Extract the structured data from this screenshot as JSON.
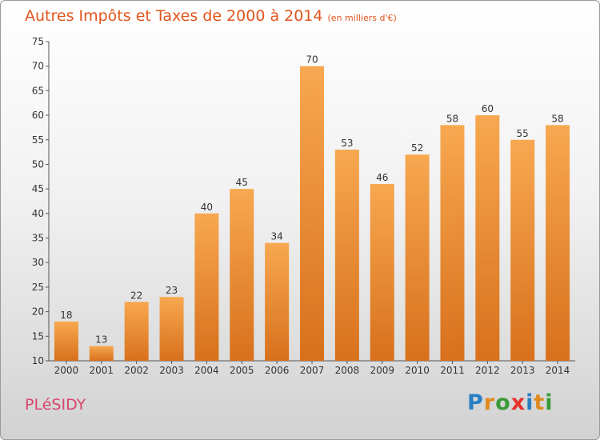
{
  "title": "Autres Impôts et Taxes de 2000 à 2014",
  "subtitle": "(en milliers d'€)",
  "commune": "PLéSIDY",
  "logo": {
    "letters": [
      "P",
      "r",
      "o",
      "x",
      "i",
      "t",
      "i"
    ],
    "colors": [
      "#2a7fc4",
      "#e08a1e",
      "#3a9a3a",
      "#e8302a",
      "#2a7fc4",
      "#e08a1e",
      "#3a9a3a"
    ]
  },
  "colors": {
    "title": "#e0561d",
    "bar_light": "#f7a850",
    "bar_dark": "#d8701c",
    "commune": "#d8466c"
  },
  "chart_data": {
    "type": "bar",
    "categories": [
      "2000",
      "2001",
      "2002",
      "2003",
      "2004",
      "2005",
      "2006",
      "2007",
      "2008",
      "2009",
      "2010",
      "2011",
      "2012",
      "2013",
      "2014"
    ],
    "values": [
      18,
      13,
      22,
      23,
      40,
      45,
      34,
      70,
      53,
      46,
      52,
      58,
      60,
      55,
      58
    ],
    "ylim": [
      10,
      75
    ],
    "yticks": [
      10,
      15,
      20,
      25,
      30,
      35,
      40,
      45,
      50,
      55,
      60,
      65,
      70,
      75
    ],
    "grid": false,
    "data_labels": true
  }
}
